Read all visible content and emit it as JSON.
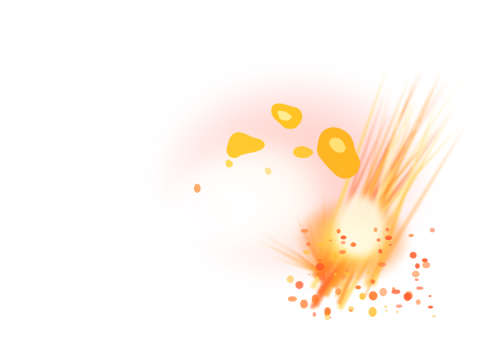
{
  "colors": {
    "background": "#ffffff",
    "halo": "#ff6a5a",
    "core_white": "#fffbe8",
    "flame_yellow": "#ffd21a",
    "flame_orange": "#ff8a1a",
    "ember_red": "#ff4a2a"
  },
  "effect": {
    "kind": "fire-explosion-burst"
  }
}
